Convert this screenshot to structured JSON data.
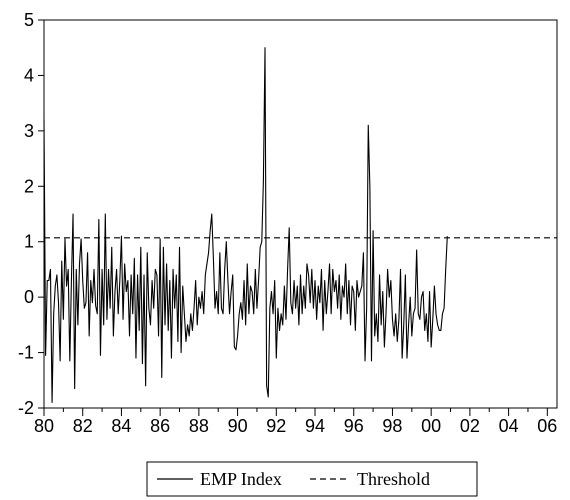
{
  "chart_data": {
    "type": "line",
    "title": "",
    "xlabel": "",
    "ylabel": "",
    "xlim": [
      1980.0,
      2006.5
    ],
    "ylim": [
      -2,
      5
    ],
    "x_ticks": [
      1980,
      1982,
      1984,
      1986,
      1988,
      1990,
      1992,
      1994,
      1996,
      1998,
      2000,
      2002,
      2004,
      2006
    ],
    "x_tick_labels": [
      "80",
      "82",
      "84",
      "86",
      "88",
      "90",
      "92",
      "94",
      "96",
      "98",
      "00",
      "02",
      "04",
      "06"
    ],
    "y_ticks": [
      -2,
      -1,
      0,
      1,
      2,
      3,
      4,
      5
    ],
    "y_tick_labels": [
      "-2",
      "-1",
      "0",
      "1",
      "2",
      "3",
      "4",
      "5"
    ],
    "grid": false,
    "legend_position": "bottom-center",
    "frequency": "monthly",
    "start": "1980-01",
    "series": [
      {
        "name": "EMP Index",
        "style": "solid",
        "color": "#000000",
        "values": [
          3.2,
          -1.05,
          0.3,
          0.3,
          0.5,
          -1.9,
          -0.3,
          0.2,
          0.4,
          -0.1,
          -1.15,
          0.65,
          -0.4,
          1.05,
          0.2,
          0.5,
          -1.15,
          0.3,
          1.5,
          -1.65,
          0.5,
          -0.5,
          0.6,
          1.05,
          0.3,
          -0.2,
          -0.1,
          0.8,
          -0.7,
          0.3,
          -0.1,
          0.5,
          -0.15,
          -0.3,
          1.4,
          -1.05,
          0.5,
          -0.5,
          1.5,
          -0.4,
          0.5,
          -0.2,
          0.9,
          -0.7,
          0.1,
          0.5,
          -0.3,
          0.3,
          1.1,
          -0.4,
          0.6,
          0.1,
          0.3,
          -0.7,
          0.4,
          -0.3,
          0.7,
          -1.1,
          0.4,
          -0.6,
          0.9,
          -1.2,
          0.4,
          -1.6,
          0.8,
          -0.2,
          -0.5,
          0.3,
          -0.2,
          0.5,
          0.4,
          -0.7,
          1.05,
          -1.45,
          0.9,
          -0.5,
          0.6,
          -0.6,
          0.3,
          -1.1,
          0.5,
          -0.2,
          0.4,
          -0.8,
          0.9,
          -1.0,
          0.2,
          -0.3,
          -0.8,
          -0.5,
          -0.7,
          -0.3,
          -0.6,
          -0.2,
          0.3,
          -0.5,
          0.0,
          -0.2,
          0.1,
          -0.3,
          0.4,
          0.6,
          0.8,
          1.2,
          1.5,
          0.7,
          -0.2,
          0.1,
          -0.3,
          0.8,
          -0.2,
          -0.3,
          0.5,
          1.0,
          0.3,
          -0.3,
          0.1,
          0.4,
          -0.9,
          -0.95,
          -0.7,
          -0.3,
          -0.1,
          -0.4,
          0.3,
          -0.5,
          0.6,
          -0.3,
          0.2,
          0.1,
          -0.3,
          0.5,
          -0.2,
          0.3,
          0.9,
          1.0,
          2.1,
          4.5,
          -1.6,
          -1.8,
          -0.2,
          0.1,
          -0.3,
          0.3,
          -1.1,
          -0.2,
          -0.6,
          -0.3,
          -0.5,
          0.2,
          -0.4,
          0.5,
          1.25,
          -0.1,
          -0.3,
          0.3,
          -0.2,
          0.2,
          -0.5,
          0.4,
          -0.3,
          0.2,
          -0.2,
          0.6,
          0.4,
          -0.1,
          0.5,
          -0.2,
          0.3,
          -0.4,
          0.2,
          -0.1,
          0.5,
          -0.6,
          0.3,
          -0.3,
          0.1,
          0.6,
          -0.3,
          0.5,
          0.1,
          0.3,
          -0.2,
          0.4,
          -0.4,
          0.2,
          0.0,
          0.6,
          -0.3,
          0.3,
          -0.5,
          0.2,
          0.1,
          -0.6,
          0.3,
          0.0,
          0.1,
          0.2,
          0.8,
          -1.15,
          -0.2,
          3.1,
          2.0,
          -1.15,
          1.2,
          -0.7,
          -0.3,
          -0.8,
          0.4,
          -0.5,
          0.1,
          -0.9,
          -0.3,
          0.5,
          0.0,
          0.3,
          -0.4,
          -0.7,
          -0.3,
          -0.8,
          -0.4,
          0.5,
          -1.1,
          -0.5,
          0.4,
          -1.1,
          -0.5,
          0.0,
          -0.7,
          -0.3,
          -0.2,
          0.85,
          -0.3,
          -0.4,
          0.0,
          0.1,
          -0.6,
          -0.3,
          -0.8,
          0.1,
          -0.9,
          -0.4,
          0.2,
          -0.3,
          -0.5,
          -0.6,
          -0.6,
          -0.3,
          -0.2,
          0.5,
          1.1
        ]
      },
      {
        "name": "Threshold",
        "style": "dashed",
        "color": "#000000",
        "values": [
          1.07
        ]
      }
    ]
  }
}
